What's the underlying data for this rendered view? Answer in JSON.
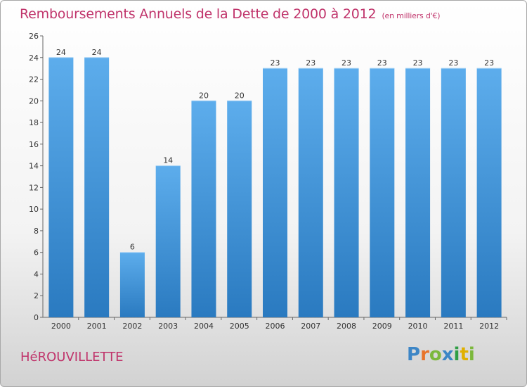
{
  "header": {
    "title": "Remboursements Annuels de la Dette de 2000 à 2012",
    "unit": "(en milliers d'€)"
  },
  "footer": {
    "commune": "HéROUVILLETTE",
    "logo_letters": [
      "P",
      "r",
      "o",
      "x",
      "i",
      "t",
      "i"
    ]
  },
  "colors": {
    "title": "#c0346b",
    "bar_top": "#5dadec",
    "bar_bottom": "#2a7ac0"
  },
  "chart_data": {
    "type": "bar",
    "title": "Remboursements Annuels de la Dette de 2000 à 2012",
    "xlabel": "",
    "ylabel": "",
    "categories": [
      "2000",
      "2001",
      "2002",
      "2003",
      "2004",
      "2005",
      "2006",
      "2007",
      "2008",
      "2009",
      "2010",
      "2011",
      "2012"
    ],
    "values": [
      24,
      24,
      6,
      14,
      20,
      20,
      23,
      23,
      23,
      23,
      23,
      23,
      23
    ],
    "ylim": [
      0,
      26
    ],
    "yticks": [
      0,
      2,
      4,
      6,
      8,
      10,
      12,
      14,
      16,
      18,
      20,
      22,
      24,
      26
    ],
    "grid": false
  }
}
